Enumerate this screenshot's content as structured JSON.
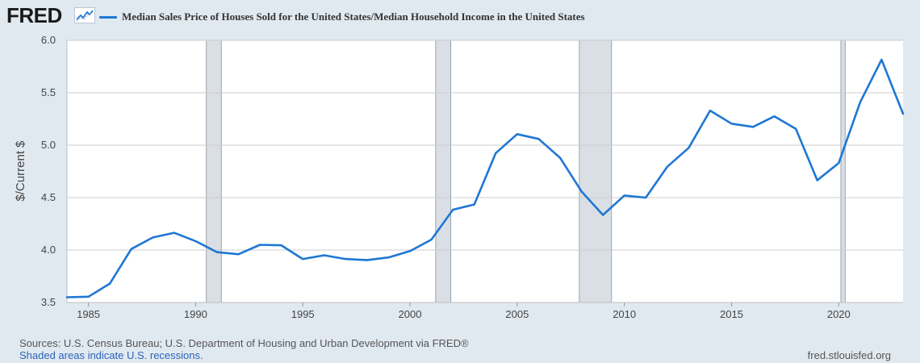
{
  "header": {
    "logo_text": "FRED",
    "logo_icon": "trend-line-icon"
  },
  "colors": {
    "series": "#1f77d4",
    "recession": "#dadfe5",
    "grid": "#cccccc",
    "plot_bg": "#ffffff",
    "page_bg": "#e1e9f0"
  },
  "chart_data": {
    "type": "line",
    "title": "",
    "xlabel": "",
    "ylabel": "$/Current $",
    "xlim": [
      1984,
      2023
    ],
    "ylim": [
      3.5,
      6.0
    ],
    "x_ticks": [
      1985,
      1990,
      1995,
      2000,
      2005,
      2010,
      2015,
      2020
    ],
    "y_ticks": [
      "3.5",
      "4.0",
      "4.5",
      "5.0",
      "5.5",
      "6.0"
    ],
    "grid": true,
    "legend": "top-left",
    "recessions": [
      [
        1990.5,
        1991.2
      ],
      [
        2001.2,
        2001.9
      ],
      [
        2007.9,
        2009.4
      ],
      [
        2020.1,
        2020.3
      ]
    ],
    "series": [
      {
        "name": "Median Sales Price of Houses Sold for the United States/Median Household Income in the United States",
        "x": [
          1984,
          1985,
          1986,
          1987,
          1988,
          1989,
          1990,
          1991,
          1992,
          1993,
          1994,
          1995,
          1996,
          1997,
          1998,
          1999,
          2000,
          2001,
          2002,
          2003,
          2004,
          2005,
          2006,
          2007,
          2008,
          2009,
          2010,
          2011,
          2012,
          2013,
          2014,
          2015,
          2016,
          2017,
          2018,
          2019,
          2020,
          2021,
          2022,
          2023
        ],
        "values": [
          3.55,
          3.555,
          3.68,
          4.01,
          4.12,
          4.165,
          4.085,
          3.98,
          3.96,
          4.05,
          4.045,
          3.915,
          3.95,
          3.915,
          3.905,
          3.93,
          3.99,
          4.1,
          4.385,
          4.435,
          4.925,
          5.105,
          5.06,
          4.88,
          4.56,
          4.335,
          4.52,
          4.5,
          4.795,
          4.975,
          5.33,
          5.205,
          5.175,
          5.275,
          5.155,
          4.665,
          4.83,
          5.41,
          5.815,
          5.3
        ]
      }
    ]
  },
  "footer": {
    "sources": "Sources: U.S. Census Bureau; U.S. Department of Housing and Urban Development via FRED®",
    "recessions_note": "Shaded areas indicate U.S. recessions.",
    "url": "fred.stlouisfed.org"
  }
}
